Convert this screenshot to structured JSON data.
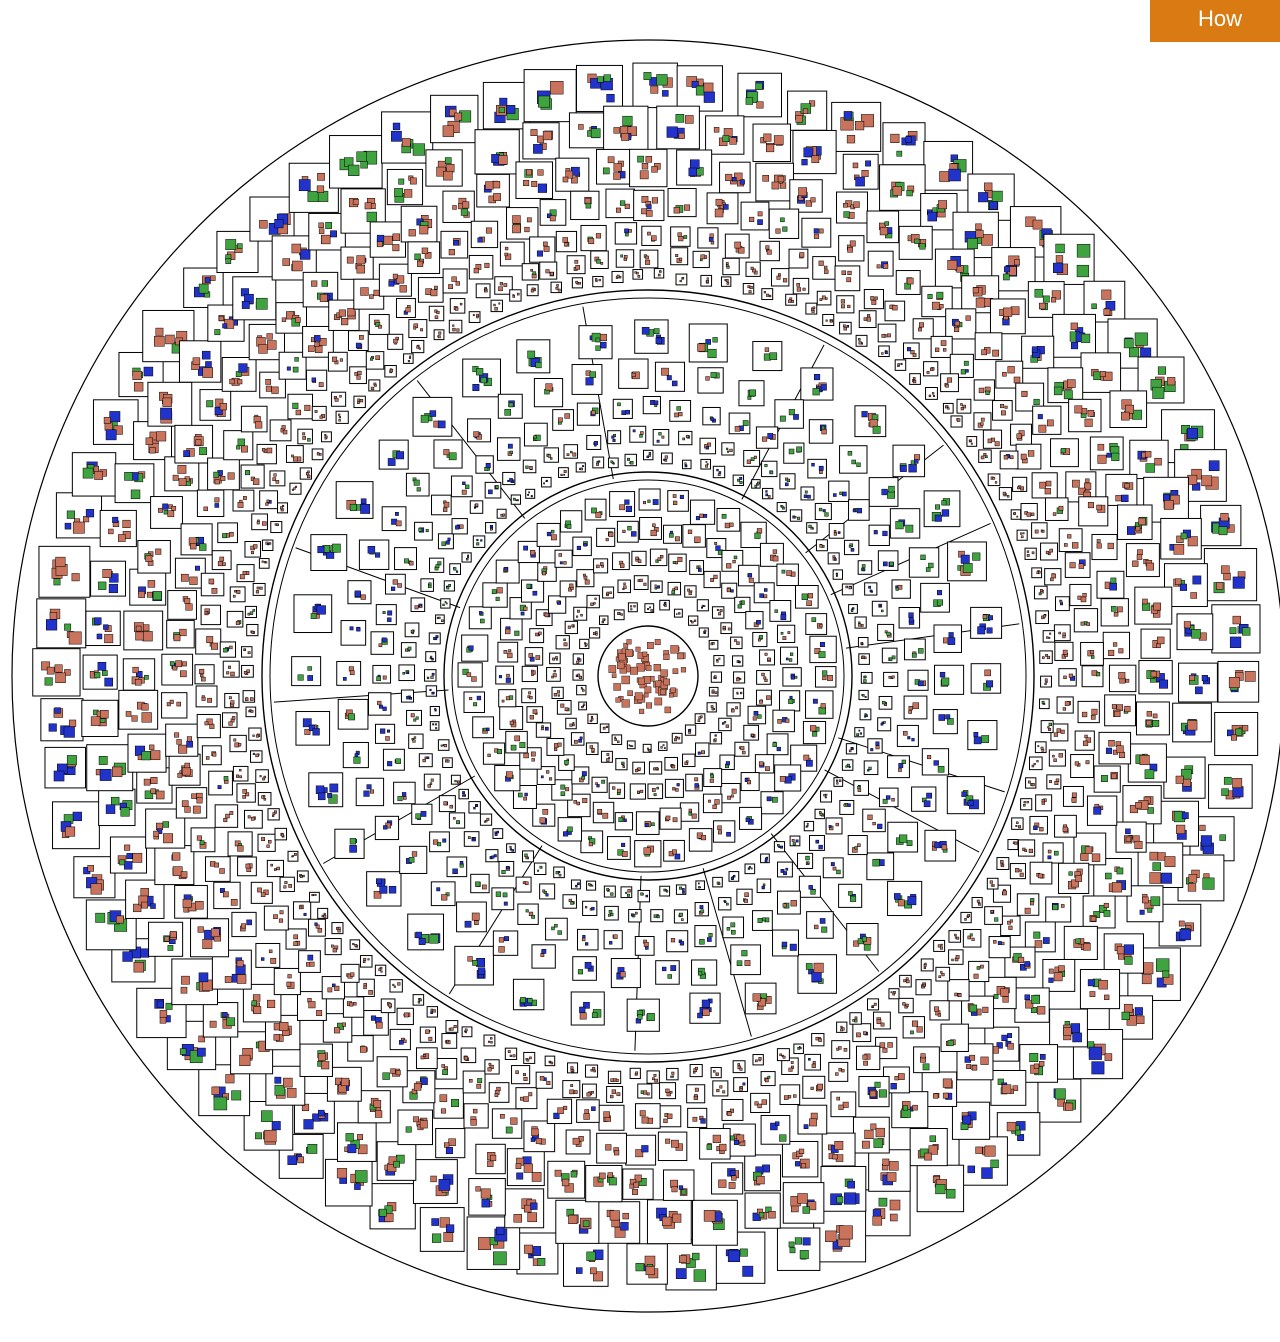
{
  "header": {
    "how_label": "How"
  },
  "colors": {
    "background": "#ffffff",
    "outline": "#000000",
    "leaf_salmon": "#c9735c",
    "leaf_green": "#3fa33f",
    "leaf_blue": "#2233cc",
    "button": "#d97a12"
  },
  "diagram": {
    "type": "radial-nested-boxes",
    "rings": [
      "inner",
      "middle",
      "outer"
    ]
  }
}
